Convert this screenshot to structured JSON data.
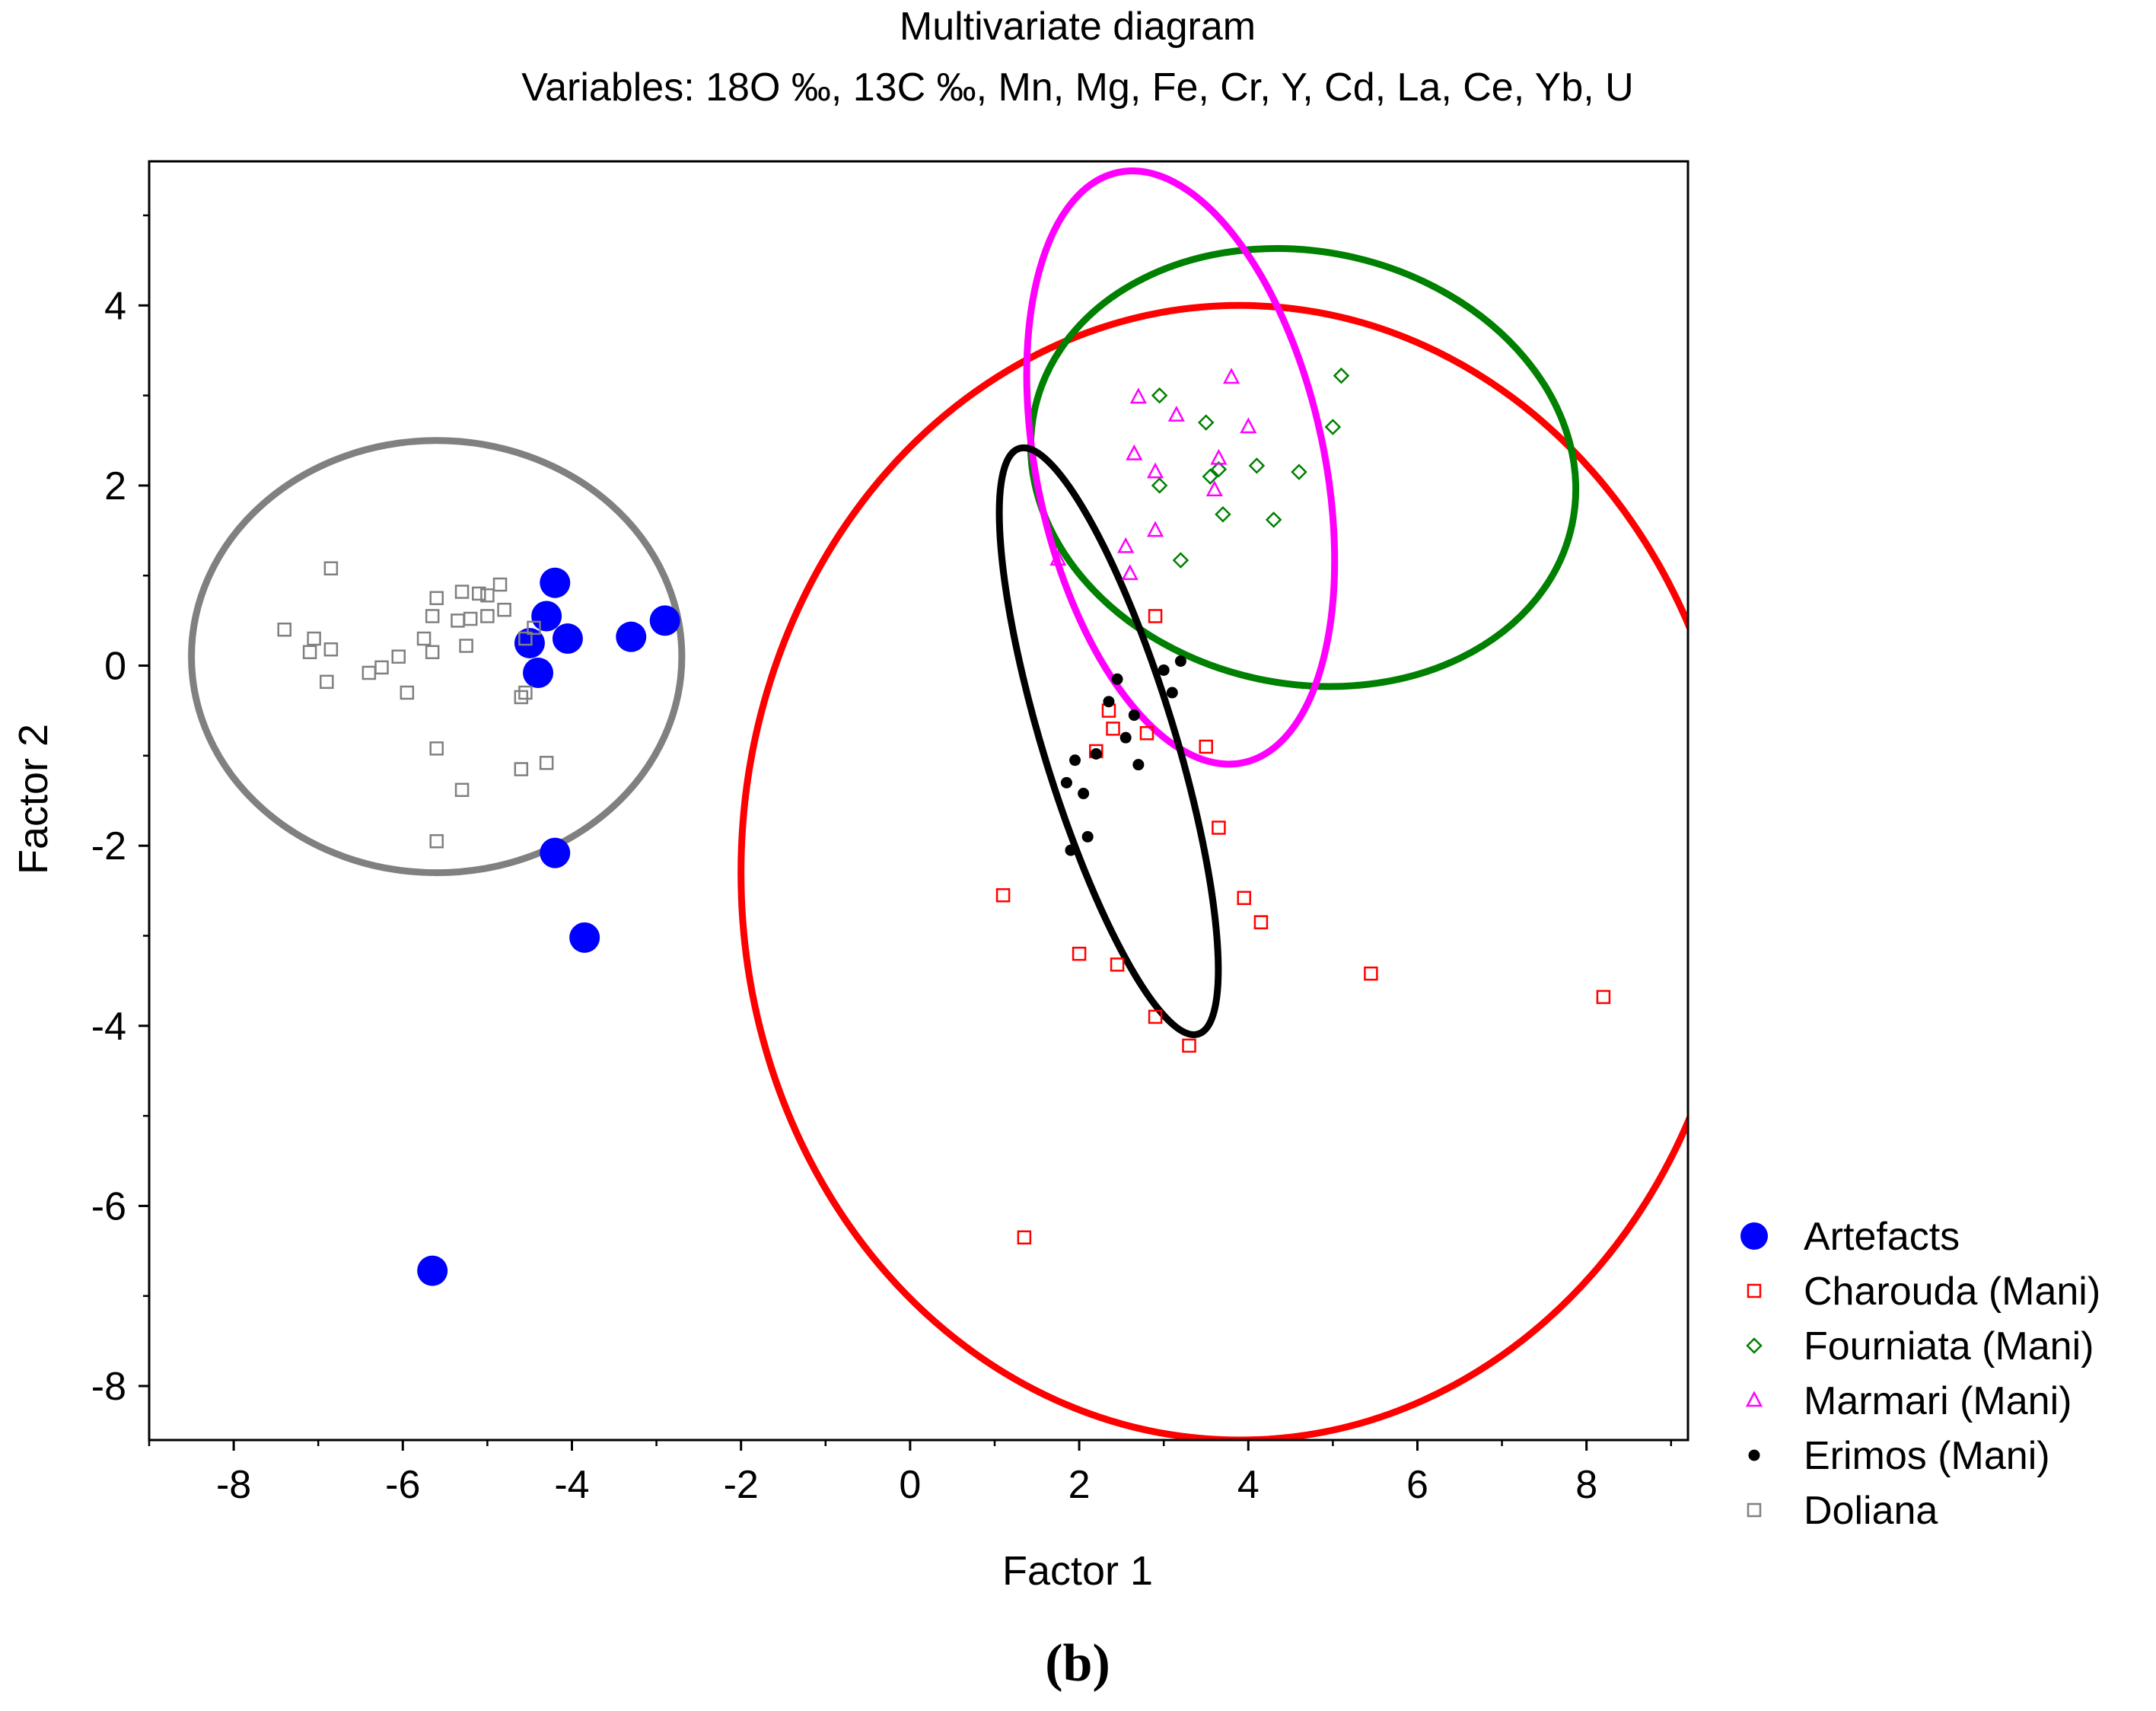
{
  "chart_data": {
    "type": "scatter",
    "title": "Multivariate diagram",
    "subtitle": "Variables: 18O ‰, 13C ‰, Mn, Mg, Fe, Cr, Y, Cd, La, Ce, Yb, U",
    "xlabel": "Factor 1",
    "ylabel": "Factor 2",
    "xlim": [
      -9,
      9.2
    ],
    "ylim": [
      -8.6,
      5.6
    ],
    "xticks": [
      -8,
      -6,
      -4,
      -2,
      0,
      2,
      4,
      6,
      8
    ],
    "yticks": [
      -8,
      -6,
      -4,
      -2,
      0,
      2,
      4
    ],
    "grid": false,
    "legend_position": "right-bottom",
    "panel_label": "(b)",
    "series": [
      {
        "name": "Artefacts",
        "marker": "filled-circle",
        "color": "#0000ff",
        "points": [
          [
            -4.2,
            0.92
          ],
          [
            -4.3,
            0.55
          ],
          [
            -4.5,
            0.25
          ],
          [
            -4.05,
            0.3
          ],
          [
            -4.4,
            -0.08
          ],
          [
            -3.3,
            0.32
          ],
          [
            -2.9,
            0.5
          ],
          [
            -4.2,
            -2.08
          ],
          [
            -3.85,
            -3.02
          ],
          [
            -5.65,
            -6.72
          ]
        ]
      },
      {
        "name": "Charouda (Mani)",
        "marker": "open-square",
        "color": "#ff0000",
        "points": [
          [
            2.9,
            0.55
          ],
          [
            2.35,
            -0.5
          ],
          [
            2.2,
            -0.95
          ],
          [
            2.4,
            -0.7
          ],
          [
            2.8,
            -0.75
          ],
          [
            3.5,
            -0.9
          ],
          [
            3.65,
            -1.8
          ],
          [
            1.1,
            -2.55
          ],
          [
            3.95,
            -2.58
          ],
          [
            4.15,
            -2.85
          ],
          [
            2.0,
            -3.2
          ],
          [
            2.45,
            -3.32
          ],
          [
            2.9,
            -3.9
          ],
          [
            3.3,
            -4.22
          ],
          [
            5.45,
            -3.42
          ],
          [
            8.2,
            -3.68
          ],
          [
            1.35,
            -6.35
          ]
        ]
      },
      {
        "name": "Fourniata (Mani)",
        "marker": "open-diamond",
        "color": "#008000",
        "points": [
          [
            2.95,
            3.0
          ],
          [
            3.5,
            2.7
          ],
          [
            5.1,
            3.22
          ],
          [
            5.0,
            2.65
          ],
          [
            4.1,
            2.22
          ],
          [
            4.6,
            2.15
          ],
          [
            3.55,
            2.1
          ],
          [
            3.65,
            2.18
          ],
          [
            2.95,
            2.0
          ],
          [
            3.7,
            1.68
          ],
          [
            4.3,
            1.62
          ],
          [
            3.2,
            1.17
          ]
        ]
      },
      {
        "name": "Marmari (Mani)",
        "marker": "open-triangle",
        "color": "#ff00ff",
        "points": [
          [
            2.7,
            2.98
          ],
          [
            3.8,
            3.2
          ],
          [
            3.15,
            2.78
          ],
          [
            4.0,
            2.65
          ],
          [
            2.65,
            2.35
          ],
          [
            3.65,
            2.3
          ],
          [
            2.9,
            2.15
          ],
          [
            3.6,
            1.95
          ],
          [
            2.9,
            1.5
          ],
          [
            2.55,
            1.32
          ],
          [
            1.75,
            1.18
          ],
          [
            2.6,
            1.02
          ]
        ]
      },
      {
        "name": "Erimos (Mani)",
        "marker": "filled-dot",
        "color": "#000000",
        "points": [
          [
            2.45,
            -0.15
          ],
          [
            3.2,
            0.05
          ],
          [
            3.0,
            -0.05
          ],
          [
            3.1,
            -0.3
          ],
          [
            2.35,
            -0.4
          ],
          [
            2.65,
            -0.55
          ],
          [
            2.55,
            -0.8
          ],
          [
            2.2,
            -0.98
          ],
          [
            1.95,
            -1.05
          ],
          [
            2.7,
            -1.1
          ],
          [
            1.85,
            -1.3
          ],
          [
            2.05,
            -1.42
          ],
          [
            2.1,
            -1.9
          ],
          [
            1.9,
            -2.05
          ]
        ]
      },
      {
        "name": "Doliana",
        "marker": "open-square",
        "color": "#808080",
        "points": [
          [
            -6.85,
            1.08
          ],
          [
            -7.4,
            0.4
          ],
          [
            -7.05,
            0.3
          ],
          [
            -7.1,
            0.15
          ],
          [
            -6.85,
            0.18
          ],
          [
            -6.9,
            -0.18
          ],
          [
            -6.4,
            -0.08
          ],
          [
            -6.25,
            -0.02
          ],
          [
            -6.05,
            0.1
          ],
          [
            -5.95,
            -0.3
          ],
          [
            -5.6,
            0.75
          ],
          [
            -5.65,
            0.55
          ],
          [
            -5.75,
            0.3
          ],
          [
            -5.65,
            0.15
          ],
          [
            -5.3,
            0.82
          ],
          [
            -5.1,
            0.8
          ],
          [
            -5.0,
            0.78
          ],
          [
            -4.85,
            0.9
          ],
          [
            -5.35,
            0.5
          ],
          [
            -5.2,
            0.52
          ],
          [
            -5.0,
            0.55
          ],
          [
            -5.25,
            0.22
          ],
          [
            -4.8,
            0.62
          ],
          [
            -4.55,
            0.3
          ],
          [
            -4.45,
            0.42
          ],
          [
            -4.55,
            -0.3
          ],
          [
            -4.6,
            -0.35
          ],
          [
            -5.6,
            -0.92
          ],
          [
            -5.3,
            -1.38
          ],
          [
            -4.6,
            -1.15
          ],
          [
            -4.3,
            -1.08
          ],
          [
            -5.6,
            -1.95
          ]
        ]
      }
    ],
    "ellipses": [
      {
        "name": "Doliana",
        "color": "#808080",
        "cx": -5.6,
        "cy": 0.1,
        "rx": 2.9,
        "ry": 2.4,
        "angle": 0
      },
      {
        "name": "Charouda (Mani)",
        "color": "#ff0000",
        "cx": 3.9,
        "cy": -2.3,
        "rx": 5.9,
        "ry": 6.3,
        "angle": 0
      },
      {
        "name": "Fourniata (Mani)",
        "color": "#008000",
        "cx": 4.65,
        "cy": 2.2,
        "rx": 3.25,
        "ry": 2.4,
        "angle": 12
      },
      {
        "name": "Marmari (Mani)",
        "color": "#ff00ff",
        "cx": 3.2,
        "cy": 2.2,
        "rx": 1.7,
        "ry": 3.35,
        "angle": -12
      },
      {
        "name": "Erimos (Mani)",
        "color": "#000000",
        "cx": 2.35,
        "cy": -0.84,
        "rx": 0.78,
        "ry": 3.4,
        "angle": -17
      }
    ]
  }
}
